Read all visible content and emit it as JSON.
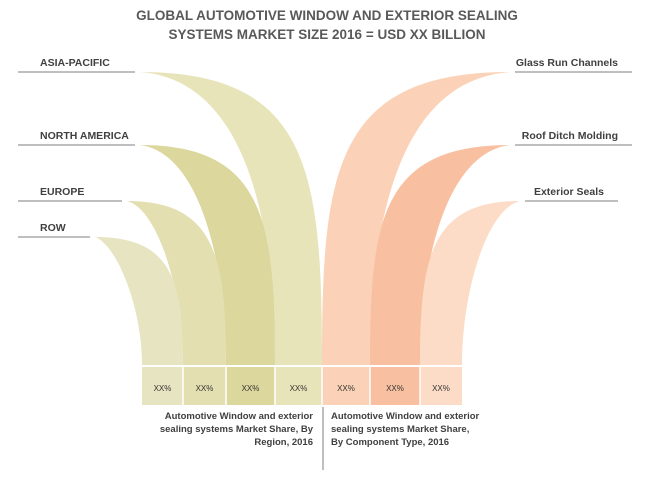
{
  "chart_data": {
    "type": "bar",
    "title_lines": [
      "GLOBAL AUTOMOTIVE  WINDOW AND EXTERIOR SEALING",
      "SYSTEMS MARKET SIZE 2016 = USD XX BILLION"
    ],
    "panels": [
      {
        "caption_lines": [
          "Automotive Window and exterior",
          "sealing systems Market Share, By",
          "Region, 2016"
        ],
        "categories": [
          "ROW",
          "EUROPE",
          "NORTH AMERICA",
          "ASIA-PACIFIC"
        ],
        "values": [
          "XX%",
          "XX%",
          "XX%",
          "XX%"
        ]
      },
      {
        "caption_lines": [
          "Automotive Window and exterior",
          "sealing systems Market Share,",
          "By Component Type, 2016"
        ],
        "categories": [
          "Glass Run Channels",
          "Roof Ditch Molding",
          "Exterior Seals"
        ],
        "values": [
          "XX%",
          "XX%",
          "XX%"
        ]
      }
    ],
    "colors": {
      "region": [
        "#e7e4c1",
        "#e3dfb1",
        "#dcd79d",
        "#e8e4b9"
      ],
      "component": [
        "#fbd2b7",
        "#f8c0a0",
        "#fcdcc6"
      ],
      "leader_line": "#7f7f7f",
      "divider": "#7f7f7f"
    }
  }
}
